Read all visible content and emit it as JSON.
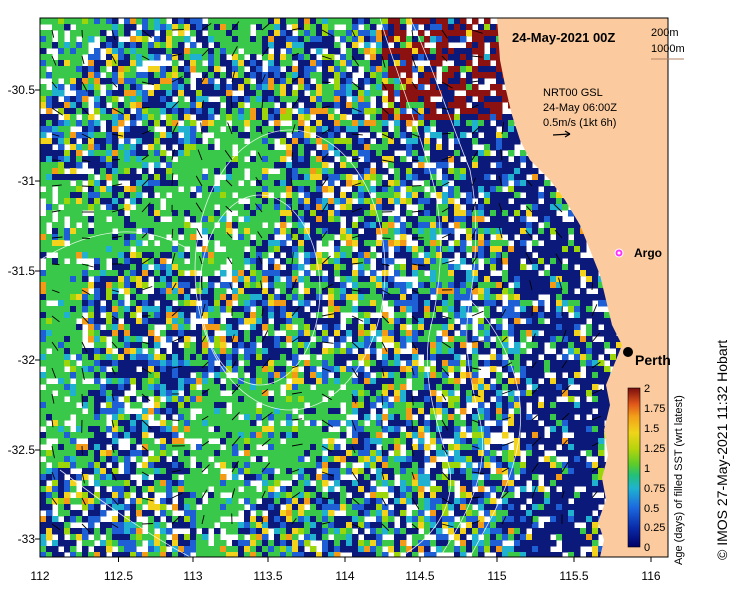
{
  "map": {
    "title": "24-May-2021 00Z",
    "contour_legend": [
      "200m",
      "1000m"
    ],
    "currents_label": [
      "NRT00 GSL",
      "24-May 06:00Z",
      "0.5m/s (1kt 6h)"
    ],
    "markers": {
      "argo": "Argo",
      "city": "Perth"
    },
    "x_ticks": [
      "112",
      "112.5",
      "113",
      "113.5",
      "114",
      "114.5",
      "115",
      "115.5",
      "116"
    ],
    "y_ticks": [
      "-30.5",
      "-31",
      "-31.5",
      "-32",
      "-32.5",
      "-33"
    ],
    "colorbar": {
      "ticks": [
        "2",
        "1.75",
        "1.5",
        "1.25",
        "1",
        "0.75",
        "0.5",
        "0.25",
        "0"
      ],
      "label": "Age (days) of filled SST (wrt latest)"
    },
    "credit": "© IMOS 27-May-2021 11:32 Hobart",
    "colors": {
      "land": "#fbcb9f",
      "navy": "#0b1a7a",
      "blue": "#1f5fd6",
      "cyan": "#1fb1cf",
      "green": "#3ac84a",
      "lime": "#9bd60b",
      "yellow": "#f2d21a",
      "orange": "#f39b16",
      "red": "#8c1111",
      "argo_marker": "#ff33ff"
    }
  }
}
